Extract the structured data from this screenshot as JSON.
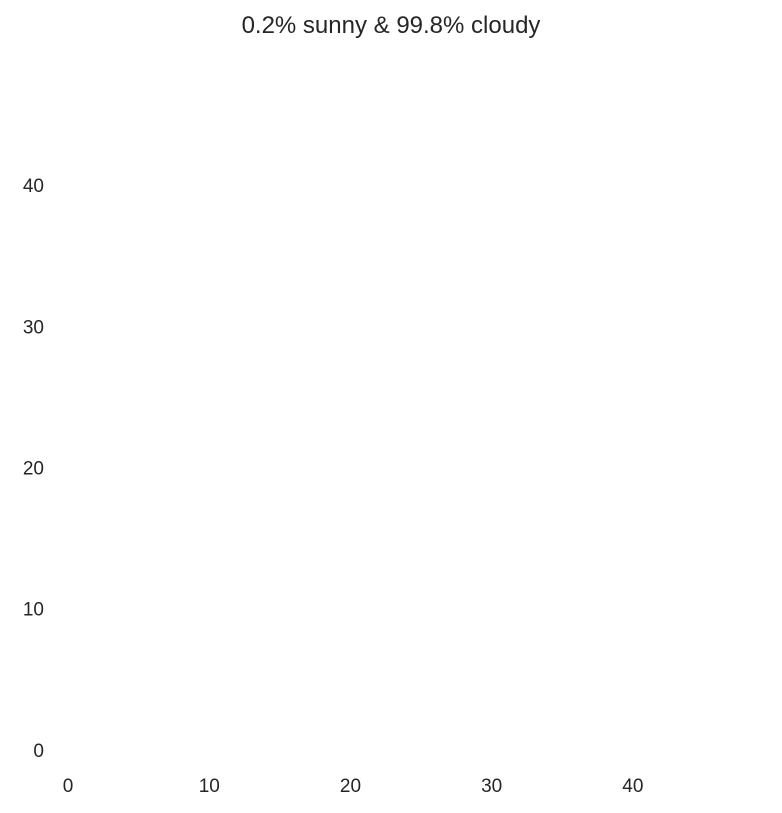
{
  "chart_data": {
    "type": "heatmap",
    "title": "0.2% sunny & 99.8% cloudy",
    "colormap": "gray",
    "image_size": [
      50,
      50
    ],
    "xlim": [
      -0.5,
      49.5
    ],
    "ylim": [
      49.5,
      -0.5
    ],
    "x_ticks": [
      0,
      10,
      20,
      30,
      40
    ],
    "y_ticks": [
      0,
      10,
      20,
      30,
      40
    ],
    "x_tick_labels": [
      "0",
      "10",
      "20",
      "30",
      "40"
    ],
    "y_tick_labels": [
      "0",
      "10",
      "20",
      "30",
      "40"
    ],
    "grid": true,
    "grid_color": "#ffffff",
    "xlabel": "",
    "ylabel": ""
  }
}
